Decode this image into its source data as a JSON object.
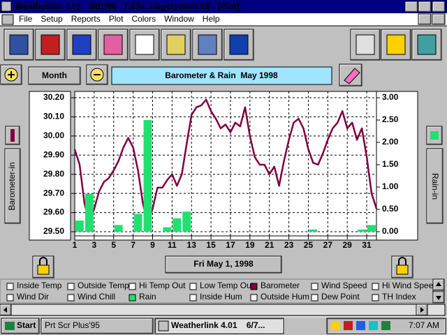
{
  "window": {
    "title": "Weatherlink 4.01   6/01/98   7:07a: Hagerstown 1E - [Plot]"
  },
  "menu": [
    "File",
    "Setup",
    "Reports",
    "Plot",
    "Colors",
    "Window",
    "Help"
  ],
  "controls": {
    "period": "Month",
    "date": "Fri May 1, 1998"
  },
  "chart_data": {
    "type": "line",
    "title": "Barometer & Rain  May 1998",
    "y_label": "Barometer-in",
    "y2_label": "Rain-in",
    "grid": true,
    "xlim": [
      1,
      32
    ],
    "xticks": [
      1,
      3,
      5,
      7,
      9,
      11,
      13,
      15,
      17,
      19,
      21,
      23,
      25,
      27,
      29,
      31
    ],
    "ylim": [
      29.5,
      30.2
    ],
    "yticks": [
      {
        "value": 29.5,
        "label": "29.50"
      },
      {
        "value": 29.6,
        "label": "29.60"
      },
      {
        "value": 29.7,
        "label": "29.70"
      },
      {
        "value": 29.8,
        "label": "29.80"
      },
      {
        "value": 29.9,
        "label": "29.90"
      },
      {
        "value": 30.0,
        "label": "30.00"
      },
      {
        "value": 30.1,
        "label": "30.10"
      },
      {
        "value": 30.2,
        "label": "30.20"
      }
    ],
    "y2lim": [
      0,
      3
    ],
    "y2ticks": [
      {
        "value": 0,
        "label": "0.00"
      },
      {
        "value": 0.5,
        "label": "0.50"
      },
      {
        "value": 1,
        "label": "1.00"
      },
      {
        "value": 1.5,
        "label": "1.50"
      },
      {
        "value": 2,
        "label": "2.00"
      },
      {
        "value": 2.5,
        "label": "2.50"
      },
      {
        "value": 3,
        "label": "3.00"
      }
    ],
    "series": [
      {
        "name": "Barometer",
        "type": "line",
        "color": "#800040",
        "x": [
          1,
          1.5,
          2,
          2.5,
          3,
          3.5,
          4,
          4.5,
          5,
          5.5,
          6,
          6.5,
          7,
          7.5,
          8,
          8.5,
          9,
          9.5,
          10,
          10.5,
          11,
          11.5,
          12,
          12.5,
          13,
          13.5,
          14,
          14.5,
          15,
          15.5,
          16,
          16.5,
          17,
          17.5,
          18,
          18.5,
          19,
          19.5,
          20,
          20.5,
          21,
          21.5,
          22,
          22.5,
          23,
          23.5,
          24,
          24.5,
          25,
          25.5,
          26,
          26.5,
          27,
          27.5,
          28,
          28.5,
          29,
          29.5,
          30,
          30.5,
          31,
          31.5,
          32
        ],
        "values": [
          29.93,
          29.85,
          29.65,
          29.55,
          29.62,
          29.71,
          29.76,
          29.78,
          29.82,
          29.87,
          29.94,
          29.99,
          29.94,
          29.82,
          29.65,
          29.54,
          29.62,
          29.73,
          29.73,
          29.77,
          29.8,
          29.74,
          29.8,
          29.96,
          30.11,
          30.15,
          30.16,
          30.19,
          30.13,
          30.09,
          30.04,
          30.06,
          30.02,
          30.07,
          30.05,
          30.15,
          30.0,
          29.89,
          29.85,
          29.85,
          29.8,
          29.84,
          29.74,
          29.87,
          29.98,
          30.07,
          30.09,
          30.04,
          29.93,
          29.86,
          29.85,
          29.91,
          29.98,
          30.04,
          30.07,
          30.13,
          30.04,
          30.07,
          29.98,
          30.04,
          29.89,
          29.7,
          29.62
        ]
      },
      {
        "name": "Rain",
        "type": "bar",
        "axis": "y2",
        "color": "#20e070",
        "x": [
          1,
          2,
          5,
          7,
          8,
          10,
          11,
          12,
          25,
          30,
          31
        ],
        "values": [
          0.25,
          0.85,
          0.15,
          0.4,
          2.5,
          0.1,
          0.3,
          0.45,
          0.05,
          0.05,
          0.15
        ]
      }
    ]
  },
  "fields": [
    "Inside Temp",
    "Outside Temp",
    "Hi Temp Out",
    "Low Temp Out",
    "Wind Speed",
    "Hi Wind Speed",
    "Wind Dir",
    "Wind Chill",
    "Inside Hum",
    "Outside Hum",
    "Dew Point",
    "TH Index"
  ],
  "taskbar": {
    "start": "Start",
    "tasks": [
      "Prt Scr Plus'95",
      "Weatherlink 4.01    6/7..."
    ],
    "clock": "7:07 AM"
  }
}
